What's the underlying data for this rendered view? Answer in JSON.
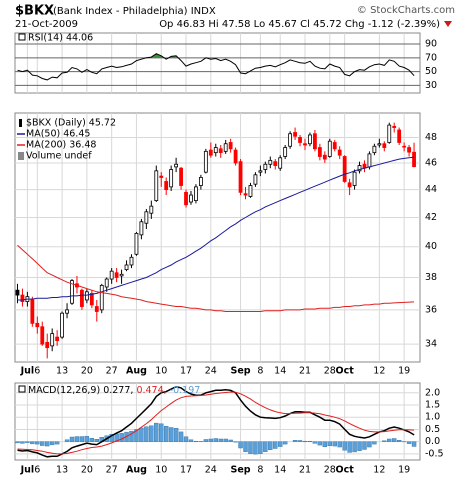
{
  "header": {
    "symbol": "$BKX",
    "name": "(Bank Index - Philadelphia) INDX",
    "source": "© StockCharts.com",
    "date": "21-Oct-2009",
    "quote": "Op 46.83 Hi 47.58 Lo 45.67 Cl 45.72 Chg -1.12 (-2.39%)"
  },
  "chart_data": [
    {
      "type": "line",
      "title": "RSI(14) 44.06",
      "color": "#000000",
      "fill_color": "#3d8f3d",
      "overbought": 70,
      "ylim": [
        19,
        106
      ],
      "yticks": [
        30,
        50,
        70,
        90
      ],
      "grid": true,
      "values": [
        52,
        50,
        52,
        45,
        44,
        40,
        38,
        42,
        41,
        48,
        49,
        56,
        54,
        49,
        53,
        49,
        47,
        54,
        56,
        58,
        56,
        57,
        59,
        61,
        66,
        68,
        70,
        71,
        76,
        73,
        68,
        72,
        73,
        66,
        58,
        61,
        63,
        65,
        70,
        68,
        69,
        66,
        68,
        65,
        60,
        48,
        47,
        51,
        55,
        56,
        58,
        59,
        57,
        60,
        63,
        67,
        65,
        63,
        62,
        65,
        58,
        55,
        54,
        61,
        58,
        56,
        46,
        44,
        50,
        53,
        52,
        57,
        60,
        61,
        59,
        67,
        65,
        58,
        56,
        52,
        44.06
      ]
    },
    {
      "type": "candlestick",
      "name": "$BKX (Daily) 45.72",
      "volume_label": "Volume undef",
      "log": true,
      "up_color": "#000000",
      "down_color": "#ff0000",
      "ylim": [
        33,
        50
      ],
      "yticks": [
        34,
        36,
        38,
        40,
        42,
        44,
        46,
        48
      ],
      "grid": true,
      "xlim": [
        -0.5,
        81.2
      ],
      "xticks": [
        {
          "value": 2,
          "label": "Jul"
        },
        {
          "value": 4,
          "label": "6"
        },
        {
          "value": 9,
          "label": "13"
        },
        {
          "value": 14,
          "label": "20"
        },
        {
          "value": 19,
          "label": "27"
        },
        {
          "value": 24,
          "label": "Aug"
        },
        {
          "value": 29,
          "label": "10"
        },
        {
          "value": 34,
          "label": "17"
        },
        {
          "value": 39,
          "label": "24"
        },
        {
          "value": 45,
          "label": "Sep"
        },
        {
          "value": 49,
          "label": "8"
        },
        {
          "value": 53,
          "label": "14"
        },
        {
          "value": 58,
          "label": "21"
        },
        {
          "value": 63,
          "label": "28"
        },
        {
          "value": 66,
          "label": "Oct"
        },
        {
          "value": 73,
          "label": "12"
        },
        {
          "value": 78,
          "label": "19"
        }
      ],
      "ohlc": [
        [
          37.2,
          37.6,
          36.4,
          36.9
        ],
        [
          36.9,
          37.3,
          36.2,
          36.5
        ],
        [
          36.5,
          37.1,
          36.2,
          36.8
        ],
        [
          36.6,
          36.8,
          35.0,
          35.2
        ],
        [
          35.2,
          35.6,
          34.6,
          35.0
        ],
        [
          35.0,
          35.3,
          33.9,
          34.0
        ],
        [
          34.1,
          34.6,
          33.2,
          33.8
        ],
        [
          33.9,
          34.9,
          33.6,
          34.6
        ],
        [
          34.4,
          34.8,
          33.9,
          34.2
        ],
        [
          34.4,
          35.9,
          34.3,
          35.8
        ],
        [
          35.8,
          36.4,
          35.5,
          36.0
        ],
        [
          36.4,
          37.9,
          36.3,
          37.8
        ],
        [
          37.6,
          38.1,
          37.0,
          37.4
        ],
        [
          37.2,
          37.3,
          36.0,
          36.2
        ],
        [
          36.6,
          37.3,
          36.4,
          37.1
        ],
        [
          37.0,
          37.2,
          36.1,
          36.3
        ],
        [
          36.2,
          36.6,
          35.3,
          35.9
        ],
        [
          36.0,
          37.6,
          35.8,
          37.5
        ],
        [
          37.4,
          38.0,
          37.1,
          37.9
        ],
        [
          37.9,
          38.6,
          37.6,
          38.4
        ],
        [
          38.3,
          38.6,
          37.7,
          38.0
        ],
        [
          38.1,
          38.5,
          37.6,
          38.2
        ],
        [
          38.5,
          39.1,
          38.4,
          38.8
        ],
        [
          38.8,
          39.5,
          38.6,
          39.3
        ],
        [
          39.5,
          41.0,
          39.4,
          40.9
        ],
        [
          40.8,
          41.9,
          40.5,
          41.7
        ],
        [
          41.6,
          42.6,
          41.2,
          42.4
        ],
        [
          42.3,
          43.2,
          41.9,
          42.8
        ],
        [
          43.2,
          45.8,
          43.1,
          45.4
        ],
        [
          45.0,
          45.3,
          44.2,
          44.9
        ],
        [
          44.6,
          44.9,
          43.6,
          44.0
        ],
        [
          44.2,
          45.8,
          43.9,
          45.5
        ],
        [
          45.7,
          46.4,
          45.3,
          45.9
        ],
        [
          45.6,
          45.7,
          44.0,
          44.3
        ],
        [
          43.8,
          44.0,
          42.7,
          42.9
        ],
        [
          43.1,
          43.9,
          42.9,
          43.6
        ],
        [
          43.2,
          44.4,
          43.0,
          44.2
        ],
        [
          44.3,
          45.1,
          44.0,
          44.9
        ],
        [
          45.3,
          47.1,
          45.2,
          46.9
        ],
        [
          47.0,
          47.6,
          46.4,
          46.6
        ],
        [
          46.8,
          47.5,
          46.5,
          47.2
        ],
        [
          47.1,
          47.4,
          46.4,
          46.8
        ],
        [
          46.9,
          47.8,
          46.7,
          47.5
        ],
        [
          47.6,
          47.9,
          46.8,
          47.1
        ],
        [
          47.0,
          47.2,
          45.8,
          46.0
        ],
        [
          46.1,
          46.3,
          43.6,
          43.8
        ],
        [
          43.7,
          44.2,
          43.3,
          43.6
        ],
        [
          43.5,
          44.5,
          43.4,
          44.3
        ],
        [
          44.4,
          45.3,
          44.2,
          45.1
        ],
        [
          45.3,
          45.8,
          45.0,
          45.4
        ],
        [
          45.5,
          46.1,
          45.2,
          45.9
        ],
        [
          45.9,
          46.5,
          45.6,
          46.2
        ],
        [
          46.1,
          46.3,
          45.5,
          45.8
        ],
        [
          45.6,
          46.6,
          45.4,
          46.4
        ],
        [
          46.5,
          47.4,
          46.3,
          47.2
        ],
        [
          47.3,
          48.5,
          47.1,
          48.3
        ],
        [
          48.4,
          48.8,
          47.8,
          48.1
        ],
        [
          48.0,
          48.2,
          47.3,
          47.6
        ],
        [
          47.5,
          47.9,
          47.0,
          47.4
        ],
        [
          47.5,
          48.4,
          47.3,
          48.2
        ],
        [
          48.3,
          48.6,
          46.9,
          47.1
        ],
        [
          47.2,
          47.5,
          46.2,
          46.5
        ],
        [
          46.6,
          46.9,
          46.0,
          46.3
        ],
        [
          46.5,
          47.9,
          46.4,
          47.7
        ],
        [
          47.6,
          47.8,
          46.9,
          47.1
        ],
        [
          47.0,
          47.3,
          46.3,
          46.6
        ],
        [
          46.5,
          46.6,
          44.5,
          44.6
        ],
        [
          44.5,
          44.8,
          43.6,
          44.2
        ],
        [
          44.3,
          45.5,
          44.0,
          45.3
        ],
        [
          45.4,
          46.1,
          45.2,
          45.8
        ],
        [
          45.9,
          46.2,
          45.3,
          45.6
        ],
        [
          45.7,
          46.9,
          45.5,
          46.7
        ],
        [
          46.8,
          47.5,
          46.6,
          47.3
        ],
        [
          47.4,
          47.9,
          47.2,
          47.5
        ],
        [
          47.5,
          47.7,
          46.9,
          47.2
        ],
        [
          47.6,
          49.2,
          47.5,
          49.0
        ],
        [
          48.9,
          49.2,
          48.4,
          48.8
        ],
        [
          48.6,
          48.8,
          47.4,
          47.6
        ],
        [
          47.3,
          47.6,
          46.9,
          47.3
        ],
        [
          47.2,
          47.4,
          46.5,
          46.84
        ],
        [
          46.83,
          47.58,
          45.67,
          45.72
        ]
      ],
      "series": [
        {
          "name": "MA(50) 46.45",
          "color": "#1a1a9c",
          "values": [
            36.6,
            36.6,
            36.65,
            36.65,
            36.7,
            36.7,
            36.7,
            36.75,
            36.75,
            36.8,
            36.8,
            36.85,
            36.85,
            36.9,
            36.9,
            36.95,
            37.0,
            37.1,
            37.2,
            37.3,
            37.4,
            37.5,
            37.6,
            37.7,
            37.8,
            37.9,
            38.0,
            38.15,
            38.3,
            38.5,
            38.65,
            38.8,
            39.0,
            39.15,
            39.3,
            39.5,
            39.7,
            39.9,
            40.15,
            40.4,
            40.6,
            40.85,
            41.1,
            41.35,
            41.55,
            41.8,
            42.0,
            42.2,
            42.4,
            42.55,
            42.75,
            42.9,
            43.05,
            43.2,
            43.35,
            43.5,
            43.65,
            43.8,
            43.95,
            44.1,
            44.25,
            44.4,
            44.55,
            44.7,
            44.85,
            45.0,
            45.15,
            45.25,
            45.4,
            45.5,
            45.6,
            45.7,
            45.8,
            45.9,
            46.0,
            46.1,
            46.2,
            46.3,
            46.35,
            46.4,
            46.45
          ]
        },
        {
          "name": "MA(200) 36.48",
          "color": "#e02020",
          "values": [
            40.1,
            39.8,
            39.5,
            39.2,
            38.9,
            38.6,
            38.3,
            38.15,
            38.0,
            37.85,
            37.7,
            37.6,
            37.5,
            37.4,
            37.3,
            37.2,
            37.1,
            37.05,
            37.0,
            36.95,
            36.9,
            36.8,
            36.75,
            36.7,
            36.65,
            36.6,
            36.5,
            36.45,
            36.4,
            36.35,
            36.3,
            36.25,
            36.2,
            36.2,
            36.15,
            36.1,
            36.1,
            36.05,
            36.0,
            36.0,
            35.95,
            35.95,
            35.9,
            35.9,
            35.9,
            35.9,
            35.9,
            35.9,
            35.9,
            35.9,
            35.95,
            35.95,
            35.95,
            35.95,
            36.0,
            36.0,
            36.0,
            36.0,
            36.05,
            36.05,
            36.05,
            36.1,
            36.1,
            36.1,
            36.15,
            36.15,
            36.2,
            36.2,
            36.25,
            36.25,
            36.3,
            36.3,
            36.35,
            36.35,
            36.4,
            36.4,
            36.42,
            36.44,
            36.45,
            36.47,
            36.48
          ]
        }
      ]
    },
    {
      "type": "macd",
      "title": "MACD(12,26,9)",
      "ylim": [
        -0.75,
        2.4
      ],
      "yticks": [
        {
          "value": 2,
          "label": "2.0"
        },
        {
          "value": 1.5,
          "label": "1.5"
        },
        {
          "value": 1,
          "label": "1.0"
        },
        {
          "value": 0.5,
          "label": "0.5"
        },
        {
          "value": 0,
          "label": "0.0"
        },
        {
          "value": -0.5,
          "label": "-0.5"
        }
      ],
      "grid": true,
      "series": [
        {
          "name": "0.277,",
          "color": "#000000",
          "values": [
            -0.35,
            -0.38,
            -0.36,
            -0.42,
            -0.46,
            -0.55,
            -0.62,
            -0.6,
            -0.6,
            -0.5,
            -0.4,
            -0.25,
            -0.18,
            -0.12,
            -0.06,
            -0.1,
            -0.12,
            0.0,
            0.12,
            0.25,
            0.35,
            0.45,
            0.6,
            0.75,
            0.95,
            1.15,
            1.35,
            1.55,
            1.85,
            2.0,
            2.05,
            2.15,
            2.25,
            2.2,
            2.05,
            1.95,
            1.9,
            1.9,
            2.0,
            2.05,
            2.1,
            2.1,
            2.12,
            2.1,
            2.0,
            1.7,
            1.45,
            1.25,
            1.1,
            1.0,
            0.98,
            0.97,
            0.95,
            0.98,
            1.05,
            1.15,
            1.22,
            1.22,
            1.2,
            1.2,
            1.1,
            1.0,
            0.88,
            0.88,
            0.82,
            0.72,
            0.5,
            0.3,
            0.22,
            0.18,
            0.15,
            0.2,
            0.3,
            0.4,
            0.45,
            0.55,
            0.6,
            0.55,
            0.48,
            0.4,
            0.277
          ]
        },
        {
          "name": "0.474,",
          "color": "#e02020",
          "values": [
            -0.3,
            -0.31,
            -0.32,
            -0.33,
            -0.36,
            -0.39,
            -0.44,
            -0.47,
            -0.5,
            -0.5,
            -0.48,
            -0.44,
            -0.39,
            -0.33,
            -0.28,
            -0.24,
            -0.22,
            -0.18,
            -0.12,
            -0.05,
            0.03,
            0.11,
            0.21,
            0.32,
            0.45,
            0.59,
            0.74,
            0.9,
            1.09,
            1.27,
            1.42,
            1.57,
            1.7,
            1.8,
            1.85,
            1.87,
            1.88,
            1.89,
            1.91,
            1.94,
            1.97,
            1.99,
            2.01,
            2.03,
            2.02,
            1.96,
            1.86,
            1.74,
            1.61,
            1.49,
            1.39,
            1.3,
            1.23,
            1.18,
            1.15,
            1.15,
            1.16,
            1.17,
            1.18,
            1.18,
            1.17,
            1.14,
            1.09,
            1.05,
            1.0,
            0.94,
            0.85,
            0.74,
            0.64,
            0.55,
            0.47,
            0.42,
            0.4,
            0.4,
            0.41,
            0.44,
            0.47,
            0.49,
            0.49,
            0.48,
            0.474
          ]
        }
      ],
      "histogram": {
        "name": "-0.197",
        "color": "#5a9fd8",
        "values": [
          -0.05,
          -0.07,
          -0.04,
          -0.09,
          -0.1,
          -0.16,
          -0.18,
          -0.13,
          -0.1,
          0.0,
          0.08,
          0.19,
          0.21,
          0.21,
          0.22,
          0.14,
          0.1,
          0.18,
          0.24,
          0.3,
          0.32,
          0.34,
          0.39,
          0.43,
          0.5,
          0.56,
          0.61,
          0.65,
          0.76,
          0.73,
          0.63,
          0.58,
          0.55,
          0.4,
          0.2,
          0.08,
          0.02,
          0.01,
          0.09,
          0.11,
          0.13,
          0.11,
          0.11,
          0.07,
          -0.02,
          -0.26,
          -0.41,
          -0.49,
          -0.51,
          -0.49,
          -0.41,
          -0.33,
          -0.28,
          -0.2,
          -0.1,
          0.0,
          0.06,
          0.05,
          0.02,
          0.02,
          -0.07,
          -0.14,
          -0.21,
          -0.17,
          -0.18,
          -0.22,
          -0.35,
          -0.44,
          -0.42,
          -0.37,
          -0.32,
          -0.22,
          -0.1,
          0.0,
          0.04,
          0.11,
          0.13,
          0.06,
          -0.01,
          -0.08,
          -0.197
        ]
      }
    }
  ]
}
